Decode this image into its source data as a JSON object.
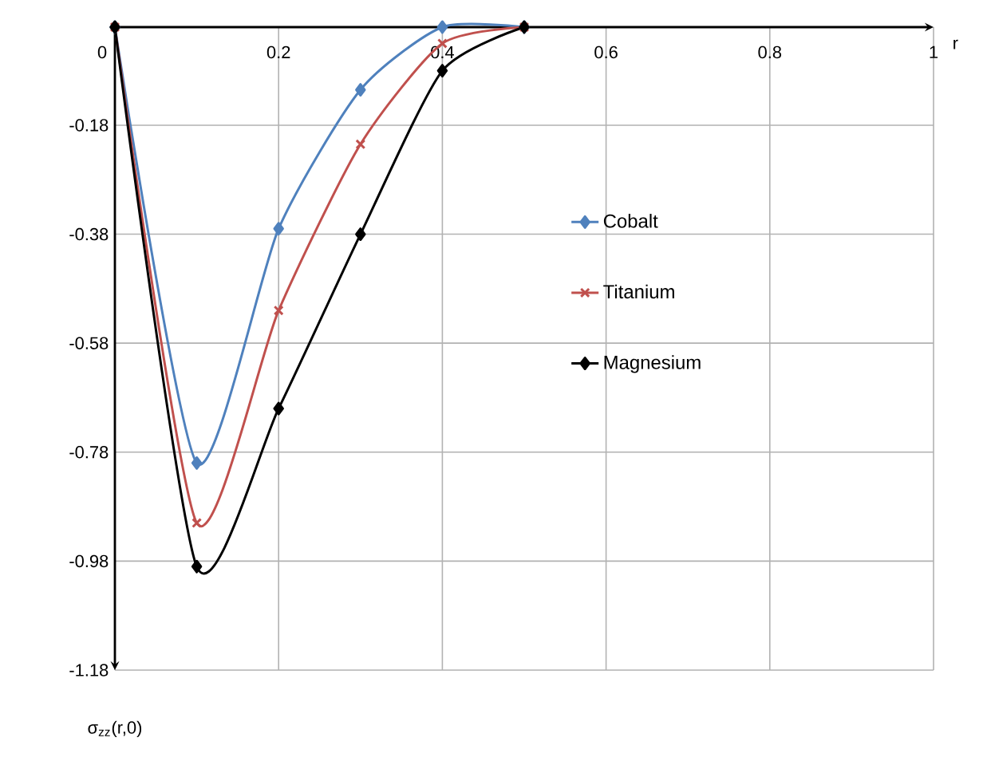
{
  "chart_data": {
    "type": "line",
    "xlabel": "r",
    "ylabel": "σ$_{zz}$(r,0)",
    "x": [
      0,
      0.1,
      0.2,
      0.3,
      0.4,
      0.5
    ],
    "series": [
      {
        "name": "Cobalt",
        "color": "#4f81bd",
        "marker": "diamond",
        "values": [
          0,
          -0.8,
          -0.37,
          -0.115,
          0,
          0
        ]
      },
      {
        "name": "Titanium",
        "color": "#c0504d",
        "marker": "cross",
        "values": [
          0,
          -0.91,
          -0.52,
          -0.215,
          -0.03,
          0
        ]
      },
      {
        "name": "Magnesium",
        "color": "#000000",
        "marker": "diamond",
        "values": [
          0,
          -0.99,
          -0.7,
          -0.38,
          -0.08,
          0
        ]
      }
    ],
    "xlim": [
      0,
      1
    ],
    "ylim": [
      -1.18,
      0
    ],
    "xticks": [
      0,
      0.2,
      0.4,
      0.6,
      0.8,
      1
    ],
    "yticks": [
      -0.18,
      -0.38,
      -0.58,
      -0.78,
      -0.98,
      -1.18
    ],
    "grid": true,
    "legend": "right",
    "line_style": "solid"
  }
}
